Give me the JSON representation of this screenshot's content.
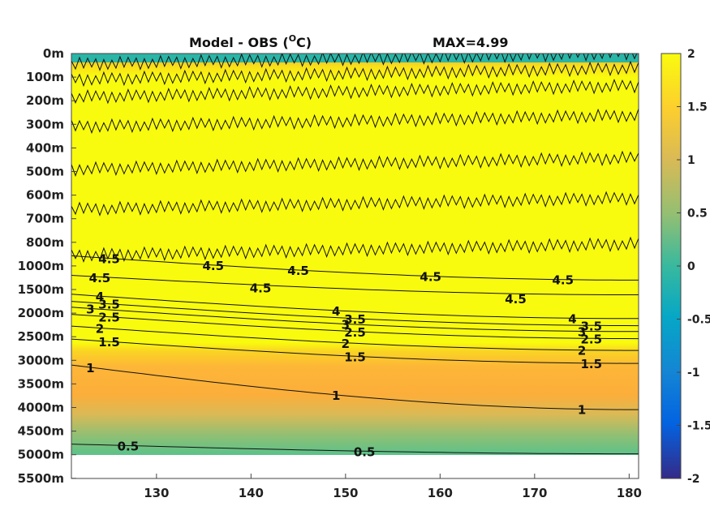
{
  "chart_data": {
    "type": "heatmap",
    "title": "Model - OBS (",
    "title_unit": "C)",
    "title_superscript": "O",
    "max_label": "MAX=4.99",
    "xlabel": "",
    "ylabel": "",
    "xlim": [
      121,
      181
    ],
    "x_ticks": [
      130,
      140,
      150,
      160,
      170,
      180
    ],
    "x_tick_labels": [
      "130",
      "140",
      "150",
      "160",
      "170",
      "180"
    ],
    "y_tick_labels": [
      "0m",
      "100m",
      "200m",
      "300m",
      "400m",
      "500m",
      "600m",
      "700m",
      "800m",
      "1000m",
      "1500m",
      "2000m",
      "2500m",
      "3000m",
      "3500m",
      "4000m",
      "4500m",
      "5000m",
      "5500m"
    ],
    "data_bottom_depth_label": "5000m",
    "colorbar": {
      "range": [
        -2,
        2
      ],
      "ticks": [
        2,
        1.5,
        1,
        0.5,
        0,
        -0.5,
        -1,
        -1.5,
        -2
      ],
      "tick_labels": [
        "2",
        "1.5",
        "1",
        "0.5",
        "0",
        "-0.5",
        "-1",
        "-1.5",
        "-2"
      ],
      "colormap": "parula",
      "colors": [
        "#352a87",
        "#0363e1",
        "#1485d4",
        "#06a7c6",
        "#38b99e",
        "#92bf73",
        "#d9ba56",
        "#fcce2e",
        "#f9fb0e"
      ]
    },
    "contour_levels": [
      0.5,
      1,
      1.5,
      2,
      2.5,
      3,
      3.5,
      4,
      4.5
    ],
    "contours": [
      {
        "level": 4.5,
        "depth_index": 8.57,
        "labels": [
          {
            "x": 125,
            "text": "4.5"
          },
          {
            "x": 136,
            "text": "4.5"
          },
          {
            "x": 145,
            "text": "4.5"
          },
          {
            "x": 159,
            "text": "4.5"
          },
          {
            "x": 173,
            "text": "4.5"
          }
        ]
      },
      {
        "level": 4.5,
        "depth_index": 9.4,
        "labels": [
          {
            "x": 124,
            "text": "4.5"
          },
          {
            "x": 141,
            "text": "4.5"
          },
          {
            "x": 168,
            "text": "4.5"
          }
        ]
      },
      {
        "level": 4,
        "depth_index": 10.2,
        "labels": [
          {
            "x": 124,
            "text": "4"
          },
          {
            "x": 149,
            "text": "4"
          },
          {
            "x": 174,
            "text": "4"
          }
        ]
      },
      {
        "level": 3.5,
        "depth_index": 10.5,
        "labels": [
          {
            "x": 125,
            "text": "3.5"
          },
          {
            "x": 151,
            "text": "3.5"
          },
          {
            "x": 176,
            "text": "3.5"
          }
        ]
      },
      {
        "level": 3,
        "depth_index": 10.75,
        "labels": [
          {
            "x": 123,
            "text": "3"
          },
          {
            "x": 150,
            "text": "3"
          },
          {
            "x": 175,
            "text": "3"
          }
        ]
      },
      {
        "level": 2.5,
        "depth_index": 11.05,
        "labels": [
          {
            "x": 125,
            "text": "2.5"
          },
          {
            "x": 151,
            "text": "2.5"
          },
          {
            "x": 176,
            "text": "2.5"
          }
        ]
      },
      {
        "level": 2,
        "depth_index": 11.55,
        "labels": [
          {
            "x": 124,
            "text": "2"
          },
          {
            "x": 150,
            "text": "2"
          },
          {
            "x": 175,
            "text": "2"
          }
        ]
      },
      {
        "level": 1.5,
        "depth_index": 12.1,
        "labels": [
          {
            "x": 125,
            "text": "1.5"
          },
          {
            "x": 151,
            "text": "1.5"
          },
          {
            "x": 176,
            "text": "1.5"
          }
        ]
      },
      {
        "level": 1,
        "depth_index": 13.2,
        "labels": [
          {
            "x": 123,
            "text": "1"
          },
          {
            "x": 149,
            "text": "1"
          },
          {
            "x": 175,
            "text": "1"
          }
        ]
      },
      {
        "level": 0.5,
        "depth_index": 16.55,
        "labels": [
          {
            "x": 127,
            "text": "0.5"
          },
          {
            "x": 152,
            "text": "0.5"
          }
        ]
      }
    ],
    "noisy_contours": [
      {
        "level": 1.5,
        "depth_index": 0.45
      },
      {
        "level": 2,
        "depth_index": 1.1
      },
      {
        "level": 2.5,
        "depth_index": 1.85
      },
      {
        "level": 3,
        "depth_index": 3.1
      },
      {
        "level": 3.5,
        "depth_index": 4.9
      },
      {
        "level": 4,
        "depth_index": 6.6
      },
      {
        "level": 4.5,
        "depth_index": 8.55
      }
    ],
    "grid": false
  }
}
